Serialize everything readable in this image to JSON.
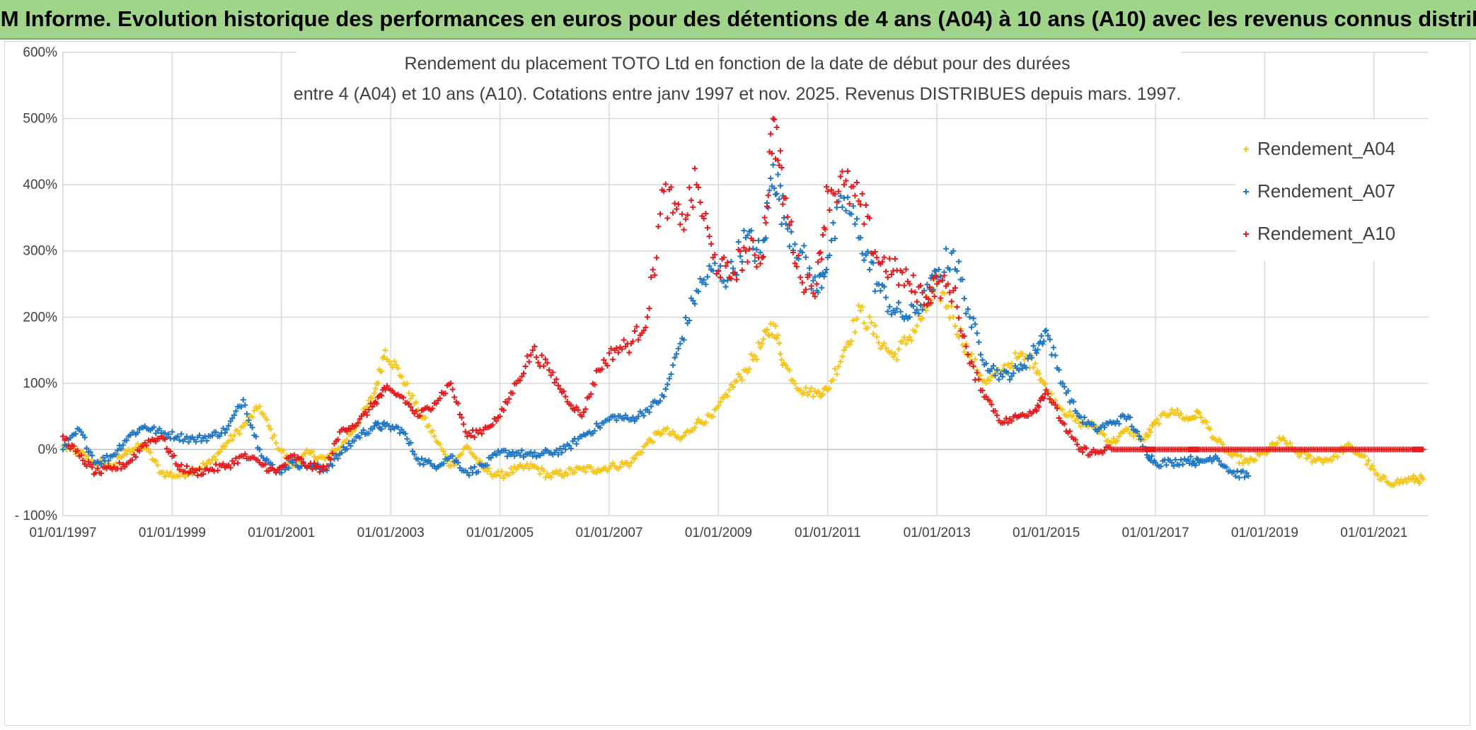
{
  "header": {
    "title": "ADAM Informe. Evolution historique des performances en euros pour des détentions de 4 ans (A04) à 10 ans (A10) avec les revenus connus distribués"
  },
  "chart_data": {
    "type": "scatter",
    "title_line1": "Rendement du placement TOTO Ltd en fonction de la date de début pour des durées",
    "title_line2": "entre 4 (A04) et 10 ans (A10). Cotations entre janv 1997 et nov. 2025. Revenus DISTRIBUES depuis mars. 1997.",
    "xlabel": "",
    "ylabel": "",
    "xlim": [
      1997.0,
      2022.0
    ],
    "ylim": [
      -100,
      600
    ],
    "y_ticks": [
      -100,
      0,
      100,
      200,
      300,
      400,
      500,
      600
    ],
    "y_tick_labels": [
      "- 100%",
      "0%",
      "100%",
      "200%",
      "300%",
      "400%",
      "500%",
      "600%"
    ],
    "x_ticks": [
      1997,
      1999,
      2001,
      2003,
      2005,
      2007,
      2009,
      2011,
      2013,
      2015,
      2017,
      2019,
      2021
    ],
    "x_tick_labels": [
      "01/01/1997",
      "01/01/1999",
      "01/01/2001",
      "01/01/2003",
      "01/01/2005",
      "01/01/2007",
      "01/01/2009",
      "01/01/2011",
      "01/01/2013",
      "01/01/2015",
      "01/01/2017",
      "01/01/2019",
      "01/01/2021"
    ],
    "grid": true,
    "legend_position": "top-right",
    "marker": "+",
    "series": [
      {
        "name": "Rendement_A04",
        "color": "#f5c518",
        "x": [
          1997.0,
          1997.3,
          1997.6,
          1997.9,
          1998.2,
          1998.5,
          1998.8,
          1999.1,
          1999.4,
          1999.7,
          2000.0,
          2000.3,
          2000.6,
          2000.9,
          2001.2,
          2001.5,
          2001.8,
          2002.1,
          2002.4,
          2002.7,
          2002.9,
          2003.2,
          2003.5,
          2003.8,
          2004.1,
          2004.4,
          2004.7,
          2005.0,
          2005.3,
          2005.6,
          2005.9,
          2006.2,
          2006.5,
          2006.8,
          2007.1,
          2007.4,
          2007.7,
          2008.0,
          2008.3,
          2008.6,
          2008.9,
          2009.2,
          2009.5,
          2009.8,
          2010.0,
          2010.2,
          2010.5,
          2010.8,
          2011.0,
          2011.3,
          2011.6,
          2011.9,
          2012.2,
          2012.5,
          2012.8,
          2013.0,
          2013.3,
          2013.6,
          2013.9,
          2014.2,
          2014.5,
          2014.8,
          2015.0,
          2015.3,
          2015.6,
          2015.9,
          2016.2,
          2016.5,
          2016.8,
          2017.0,
          2017.3,
          2017.6,
          2017.8,
          2018.1,
          2018.4,
          2018.7,
          2019.0,
          2019.3,
          2019.6,
          2019.9,
          2020.2,
          2020.5,
          2020.8,
          2021.1,
          2021.4,
          2021.7,
          2021.9
        ],
        "values": [
          5,
          -5,
          -20,
          -25,
          0,
          5,
          -35,
          -40,
          -30,
          -20,
          10,
          35,
          65,
          10,
          -25,
          -5,
          -15,
          5,
          40,
          85,
          150,
          110,
          60,
          20,
          -25,
          5,
          -30,
          -40,
          -30,
          -25,
          -40,
          -35,
          -30,
          -30,
          -25,
          -20,
          10,
          30,
          15,
          40,
          50,
          90,
          120,
          160,
          190,
          130,
          90,
          85,
          90,
          150,
          210,
          170,
          140,
          170,
          210,
          250,
          200,
          140,
          100,
          120,
          140,
          130,
          90,
          60,
          40,
          35,
          10,
          30,
          15,
          40,
          60,
          45,
          55,
          15,
          -10,
          -20,
          -5,
          15,
          -5,
          -15,
          -15,
          5,
          -10,
          -45,
          -50,
          -45,
          -45
        ]
      },
      {
        "name": "Rendement_A07",
        "color": "#1f77c4",
        "x": [
          1997.0,
          1997.3,
          1997.6,
          1997.9,
          1998.2,
          1998.5,
          1998.8,
          1999.1,
          1999.4,
          1999.7,
          2000.0,
          2000.3,
          2000.6,
          2000.9,
          2001.2,
          2001.5,
          2001.8,
          2002.1,
          2002.4,
          2002.7,
          2002.9,
          2003.2,
          2003.5,
          2003.8,
          2004.1,
          2004.4,
          2004.7,
          2005.0,
          2005.3,
          2005.6,
          2005.9,
          2006.2,
          2006.5,
          2006.8,
          2007.1,
          2007.4,
          2007.7,
          2008.0,
          2008.3,
          2008.6,
          2008.9,
          2009.2,
          2009.5,
          2009.8,
          2010.0,
          2010.2,
          2010.5,
          2010.8,
          2011.0,
          2011.3,
          2011.6,
          2011.9,
          2012.2,
          2012.5,
          2012.8,
          2013.0,
          2013.3,
          2013.6,
          2013.9,
          2014.2,
          2014.5,
          2014.8,
          2015.0,
          2015.3,
          2015.6,
          2015.9,
          2016.2,
          2016.5,
          2016.8,
          2017.0,
          2017.3,
          2017.6,
          2017.8,
          2018.1,
          2018.4,
          2018.7
        ],
        "values": [
          0,
          30,
          -20,
          -10,
          20,
          35,
          25,
          20,
          15,
          20,
          30,
          75,
          0,
          -35,
          -20,
          -25,
          -30,
          -5,
          20,
          35,
          35,
          30,
          -15,
          -25,
          -10,
          -35,
          -25,
          -5,
          -5,
          -10,
          -5,
          0,
          20,
          35,
          50,
          45,
          60,
          80,
          160,
          240,
          270,
          260,
          320,
          290,
          430,
          350,
          300,
          240,
          290,
          380,
          320,
          250,
          210,
          200,
          230,
          260,
          300,
          200,
          130,
          110,
          120,
          150,
          180,
          100,
          50,
          30,
          40,
          50,
          0,
          -20,
          -20,
          -15,
          -20,
          -10,
          -35,
          -40
        ]
      },
      {
        "name": "Rendement_A10",
        "color": "#e41a1c",
        "x": [
          1997.0,
          1997.3,
          1997.6,
          1997.9,
          1998.2,
          1998.5,
          1998.8,
          1999.1,
          1999.4,
          1999.7,
          2000.0,
          2000.3,
          2000.6,
          2000.9,
          2001.2,
          2001.5,
          2001.8,
          2002.1,
          2002.4,
          2002.7,
          2002.9,
          2003.2,
          2003.5,
          2003.8,
          2004.1,
          2004.4,
          2004.7,
          2005.0,
          2005.3,
          2005.6,
          2005.9,
          2006.2,
          2006.5,
          2006.8,
          2007.1,
          2007.4,
          2007.7,
          2008.0,
          2008.3,
          2008.6,
          2008.9,
          2009.2,
          2009.5,
          2009.8,
          2010.0,
          2010.2,
          2010.5,
          2010.8,
          2011.0,
          2011.3,
          2011.6,
          2011.9,
          2012.2,
          2012.5,
          2012.8,
          2013.0,
          2013.3,
          2013.6,
          2013.9,
          2014.2,
          2014.5,
          2014.8,
          2015.0,
          2015.3,
          2015.6,
          2015.9,
          2016.2,
          2016.5,
          2016.8,
          2017.0,
          2017.3,
          2017.6,
          2017.8,
          2018.1,
          2018.4,
          2018.7,
          2019.0,
          2019.3,
          2019.6,
          2019.9,
          2020.2,
          2020.5,
          2020.8,
          2021.1,
          2021.4,
          2021.7,
          2021.9
        ],
        "values": [
          20,
          -10,
          -35,
          -30,
          -20,
          10,
          20,
          -25,
          -35,
          -30,
          -25,
          -10,
          -20,
          -35,
          -10,
          -25,
          -30,
          30,
          40,
          70,
          90,
          80,
          50,
          70,
          100,
          20,
          30,
          50,
          100,
          150,
          120,
          80,
          50,
          120,
          150,
          160,
          200,
          390,
          340,
          400,
          290,
          260,
          300,
          290,
          500,
          380,
          260,
          250,
          390,
          400,
          370,
          290,
          270,
          250,
          230,
          250,
          240,
          130,
          80,
          40,
          50,
          60,
          90,
          40,
          0,
          -5,
          0,
          0,
          0,
          0,
          0,
          0,
          0,
          0,
          0,
          0,
          0,
          0,
          0,
          0,
          0,
          0,
          0,
          0,
          0,
          0,
          0
        ]
      }
    ]
  }
}
